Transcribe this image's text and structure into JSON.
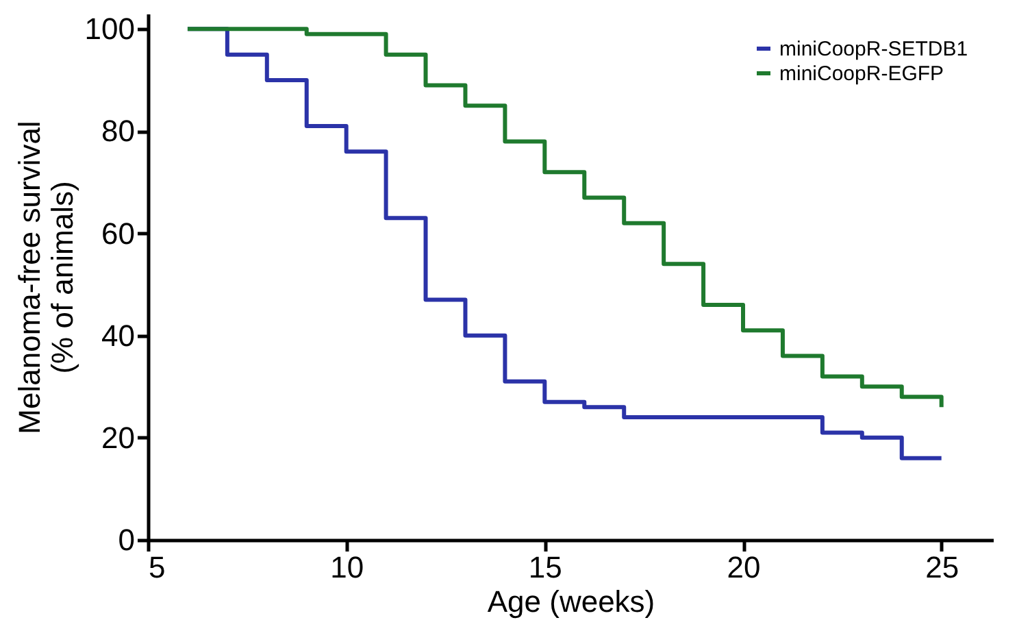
{
  "chart_data": {
    "type": "step",
    "xlabel": "Age (weeks)",
    "ylabel": "Melanoma-free survival\n(% of animals)",
    "xlim": [
      5,
      26.3
    ],
    "xticks": [
      5,
      10,
      15,
      20,
      25
    ],
    "ylim": [
      0,
      103
    ],
    "yticks": [
      0,
      20,
      40,
      60,
      80,
      100
    ],
    "grid": false,
    "legend": "top right",
    "marker": "none",
    "line_style": "solid",
    "series": [
      {
        "name": "miniCoopR-SETDB1",
        "color": "#2b33a8",
        "x": [
          6,
          7,
          8,
          9,
          10,
          11,
          12,
          13,
          14,
          15,
          16,
          17,
          22,
          23,
          24,
          25
        ],
        "values": [
          100,
          95,
          90,
          81,
          76,
          63,
          47,
          40,
          31,
          27,
          26,
          24,
          21,
          20,
          16,
          16
        ]
      },
      {
        "name": "miniCoopR-EGFP",
        "color": "#1f7a2e",
        "x": [
          6,
          9,
          11,
          12,
          13,
          14,
          15,
          16,
          17,
          18,
          19,
          20,
          21,
          22,
          23,
          24,
          25
        ],
        "values": [
          100,
          99,
          95,
          89,
          85,
          78,
          72,
          67,
          62,
          54,
          46,
          41,
          36,
          32,
          30,
          28,
          26
        ]
      }
    ]
  }
}
